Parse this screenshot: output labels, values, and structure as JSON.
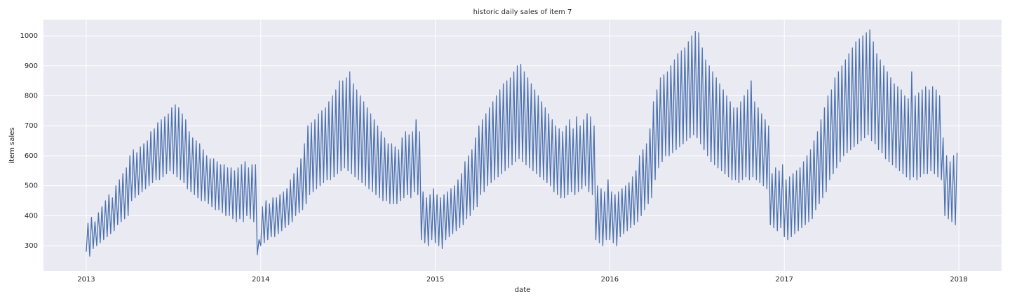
{
  "chart_data": {
    "type": "line",
    "title": "historic daily sales of item 7",
    "xlabel": "date",
    "ylabel": "item sales",
    "color": "#4c72b0",
    "grid": true,
    "xlim": [
      2012.755,
      2018.245
    ],
    "xticks": [
      2013,
      2014,
      2015,
      2016,
      2017,
      2018
    ],
    "ylim": [
      216,
      1054
    ],
    "yticks": [
      300,
      400,
      500,
      600,
      700,
      800,
      900,
      1000
    ],
    "x": [
      2013.0,
      2013.01,
      2013.02,
      2013.03,
      2013.04,
      2013.05,
      2013.06,
      2013.07,
      2013.08,
      2013.09,
      2013.1,
      2013.11,
      2013.12,
      2013.13,
      2013.14,
      2013.15,
      2013.16,
      2013.17,
      2013.18,
      2013.19,
      2013.2,
      2013.21,
      2013.22,
      2013.23,
      2013.24,
      2013.25,
      2013.26,
      2013.27,
      2013.28,
      2013.29,
      2013.3,
      2013.31,
      2013.32,
      2013.33,
      2013.34,
      2013.35,
      2013.36,
      2013.37,
      2013.38,
      2013.39,
      2013.4,
      2013.41,
      2013.42,
      2013.43,
      2013.44,
      2013.45,
      2013.46,
      2013.47,
      2013.48,
      2013.49,
      2013.5,
      2013.51,
      2013.52,
      2013.53,
      2013.54,
      2013.55,
      2013.56,
      2013.57,
      2013.58,
      2013.59,
      2013.6,
      2013.61,
      2013.62,
      2013.63,
      2013.64,
      2013.65,
      2013.66,
      2013.67,
      2013.68,
      2013.69,
      2013.7,
      2013.71,
      2013.72,
      2013.73,
      2013.74,
      2013.75,
      2013.76,
      2013.77,
      2013.78,
      2013.79,
      2013.8,
      2013.81,
      2013.82,
      2013.83,
      2013.84,
      2013.85,
      2013.86,
      2013.87,
      2013.88,
      2013.89,
      2013.9,
      2013.91,
      2013.92,
      2013.93,
      2013.94,
      2013.95,
      2013.96,
      2013.97,
      2013.98,
      2013.99,
      2014.0,
      2014.01,
      2014.02,
      2014.03,
      2014.04,
      2014.05,
      2014.06,
      2014.07,
      2014.08,
      2014.09,
      2014.1,
      2014.11,
      2014.12,
      2014.13,
      2014.14,
      2014.15,
      2014.16,
      2014.17,
      2014.18,
      2014.19,
      2014.2,
      2014.21,
      2014.22,
      2014.23,
      2014.24,
      2014.25,
      2014.26,
      2014.27,
      2014.28,
      2014.29,
      2014.3,
      2014.31,
      2014.32,
      2014.33,
      2014.34,
      2014.35,
      2014.36,
      2014.37,
      2014.38,
      2014.39,
      2014.4,
      2014.41,
      2014.42,
      2014.43,
      2014.44,
      2014.45,
      2014.46,
      2014.47,
      2014.48,
      2014.49,
      2014.5,
      2014.51,
      2014.52,
      2014.53,
      2014.54,
      2014.55,
      2014.56,
      2014.57,
      2014.58,
      2014.59,
      2014.6,
      2014.61,
      2014.62,
      2014.63,
      2014.64,
      2014.65,
      2014.66,
      2014.67,
      2014.68,
      2014.69,
      2014.7,
      2014.71,
      2014.72,
      2014.73,
      2014.74,
      2014.75,
      2014.76,
      2014.77,
      2014.78,
      2014.79,
      2014.8,
      2014.81,
      2014.82,
      2014.83,
      2014.84,
      2014.85,
      2014.86,
      2014.87,
      2014.88,
      2014.89,
      2014.9,
      2014.91,
      2014.92,
      2014.93,
      2014.94,
      2014.95,
      2014.96,
      2014.97,
      2014.98,
      2014.99,
      2015.0,
      2015.01,
      2015.02,
      2015.03,
      2015.04,
      2015.05,
      2015.06,
      2015.07,
      2015.08,
      2015.09,
      2015.1,
      2015.11,
      2015.12,
      2015.13,
      2015.14,
      2015.15,
      2015.16,
      2015.17,
      2015.18,
      2015.19,
      2015.2,
      2015.21,
      2015.22,
      2015.23,
      2015.24,
      2015.25,
      2015.26,
      2015.27,
      2015.28,
      2015.29,
      2015.3,
      2015.31,
      2015.32,
      2015.33,
      2015.34,
      2015.35,
      2015.36,
      2015.37,
      2015.38,
      2015.39,
      2015.4,
      2015.41,
      2015.42,
      2015.43,
      2015.44,
      2015.45,
      2015.46,
      2015.47,
      2015.48,
      2015.49,
      2015.5,
      2015.51,
      2015.52,
      2015.53,
      2015.54,
      2015.55,
      2015.56,
      2015.57,
      2015.58,
      2015.59,
      2015.6,
      2015.61,
      2015.62,
      2015.63,
      2015.64,
      2015.65,
      2015.66,
      2015.67,
      2015.68,
      2015.69,
      2015.7,
      2015.71,
      2015.72,
      2015.73,
      2015.74,
      2015.75,
      2015.76,
      2015.77,
      2015.78,
      2015.79,
      2015.8,
      2015.81,
      2015.82,
      2015.83,
      2015.84,
      2015.85,
      2015.86,
      2015.87,
      2015.88,
      2015.89,
      2015.9,
      2015.91,
      2015.92,
      2015.93,
      2015.94,
      2015.95,
      2015.96,
      2015.97,
      2015.98,
      2015.99,
      2016.0,
      2016.01,
      2016.02,
      2016.03,
      2016.04,
      2016.05,
      2016.06,
      2016.07,
      2016.08,
      2016.09,
      2016.1,
      2016.11,
      2016.12,
      2016.13,
      2016.14,
      2016.15,
      2016.16,
      2016.17,
      2016.18,
      2016.19,
      2016.2,
      2016.21,
      2016.22,
      2016.23,
      2016.24,
      2016.25,
      2016.26,
      2016.27,
      2016.28,
      2016.29,
      2016.3,
      2016.31,
      2016.32,
      2016.33,
      2016.34,
      2016.35,
      2016.36,
      2016.37,
      2016.38,
      2016.39,
      2016.4,
      2016.41,
      2016.42,
      2016.43,
      2016.44,
      2016.45,
      2016.46,
      2016.47,
      2016.48,
      2016.49,
      2016.5,
      2016.51,
      2016.52,
      2016.53,
      2016.54,
      2016.55,
      2016.56,
      2016.57,
      2016.58,
      2016.59,
      2016.6,
      2016.61,
      2016.62,
      2016.63,
      2016.64,
      2016.65,
      2016.66,
      2016.67,
      2016.68,
      2016.69,
      2016.7,
      2016.71,
      2016.72,
      2016.73,
      2016.74,
      2016.75,
      2016.76,
      2016.77,
      2016.78,
      2016.79,
      2016.8,
      2016.81,
      2016.82,
      2016.83,
      2016.84,
      2016.85,
      2016.86,
      2016.87,
      2016.88,
      2016.89,
      2016.9,
      2016.91,
      2016.92,
      2016.93,
      2016.94,
      2016.95,
      2016.96,
      2016.97,
      2016.98,
      2016.99,
      2017.0,
      2017.01,
      2017.02,
      2017.03,
      2017.04,
      2017.05,
      2017.06,
      2017.07,
      2017.08,
      2017.09,
      2017.1,
      2017.11,
      2017.12,
      2017.13,
      2017.14,
      2017.15,
      2017.16,
      2017.17,
      2017.18,
      2017.19,
      2017.2,
      2017.21,
      2017.22,
      2017.23,
      2017.24,
      2017.25,
      2017.26,
      2017.27,
      2017.28,
      2017.29,
      2017.3,
      2017.31,
      2017.32,
      2017.33,
      2017.34,
      2017.35,
      2017.36,
      2017.37,
      2017.38,
      2017.39,
      2017.4,
      2017.41,
      2017.42,
      2017.43,
      2017.44,
      2017.45,
      2017.46,
      2017.47,
      2017.48,
      2017.49,
      2017.5,
      2017.51,
      2017.52,
      2017.53,
      2017.54,
      2017.55,
      2017.56,
      2017.57,
      2017.58,
      2017.59,
      2017.6,
      2017.61,
      2017.62,
      2017.63,
      2017.64,
      2017.65,
      2017.66,
      2017.67,
      2017.68,
      2017.69,
      2017.7,
      2017.71,
      2017.72,
      2017.73,
      2017.74,
      2017.75,
      2017.76,
      2017.77,
      2017.78,
      2017.79,
      2017.8,
      2017.81,
      2017.82,
      2017.83,
      2017.84,
      2017.85,
      2017.86,
      2017.87,
      2017.88,
      2017.89,
      2017.9,
      2017.91,
      2017.92,
      2017.93,
      2017.94,
      2017.95,
      2017.96,
      2017.97,
      2017.98,
      2017.99
    ],
    "values": [
      280,
      375,
      265,
      395,
      290,
      380,
      300,
      410,
      310,
      430,
      320,
      450,
      330,
      470,
      340,
      460,
      350,
      500,
      370,
      520,
      380,
      540,
      390,
      560,
      400,
      600,
      450,
      620,
      460,
      610,
      470,
      630,
      480,
      640,
      490,
      650,
      500,
      680,
      510,
      690,
      520,
      710,
      520,
      720,
      530,
      730,
      540,
      740,
      550,
      760,
      540,
      770,
      530,
      760,
      520,
      740,
      510,
      720,
      490,
      680,
      480,
      660,
      470,
      650,
      460,
      640,
      450,
      620,
      450,
      600,
      440,
      590,
      430,
      590,
      420,
      580,
      420,
      570,
      410,
      570,
      400,
      560,
      400,
      560,
      390,
      550,
      380,
      560,
      390,
      570,
      380,
      580,
      400,
      560,
      390,
      570,
      380,
      570,
      270,
      320,
      300,
      430,
      310,
      450,
      320,
      440,
      330,
      460,
      330,
      460,
      340,
      470,
      350,
      480,
      360,
      490,
      370,
      520,
      380,
      540,
      400,
      560,
      410,
      590,
      420,
      640,
      440,
      700,
      470,
      710,
      480,
      720,
      490,
      740,
      500,
      750,
      510,
      760,
      520,
      780,
      520,
      800,
      530,
      820,
      540,
      850,
      550,
      850,
      560,
      860,
      550,
      880,
      540,
      840,
      530,
      820,
      520,
      800,
      510,
      780,
      500,
      760,
      490,
      740,
      480,
      720,
      470,
      700,
      460,
      680,
      450,
      660,
      450,
      640,
      440,
      640,
      440,
      630,
      440,
      620,
      450,
      660,
      460,
      680,
      470,
      670,
      460,
      680,
      480,
      720,
      470,
      680,
      320,
      480,
      310,
      460,
      300,
      470,
      320,
      490,
      310,
      470,
      300,
      460,
      290,
      470,
      320,
      480,
      330,
      490,
      340,
      500,
      350,
      520,
      360,
      540,
      370,
      580,
      390,
      600,
      400,
      620,
      420,
      660,
      430,
      700,
      470,
      720,
      480,
      740,
      500,
      760,
      510,
      780,
      520,
      800,
      530,
      820,
      540,
      840,
      550,
      850,
      560,
      860,
      570,
      880,
      580,
      900,
      590,
      905,
      580,
      880,
      570,
      860,
      560,
      840,
      550,
      820,
      540,
      800,
      530,
      780,
      520,
      760,
      510,
      740,
      500,
      720,
      480,
      700,
      470,
      690,
      460,
      680,
      460,
      700,
      470,
      720,
      480,
      690,
      470,
      730,
      480,
      700,
      490,
      720,
      500,
      740,
      480,
      730,
      470,
      700,
      320,
      500,
      310,
      490,
      300,
      480,
      320,
      520,
      320,
      480,
      310,
      470,
      300,
      480,
      330,
      490,
      340,
      500,
      350,
      510,
      360,
      530,
      370,
      550,
      380,
      600,
      400,
      620,
      420,
      640,
      440,
      690,
      460,
      780,
      520,
      820,
      560,
      860,
      580,
      870,
      600,
      880,
      600,
      900,
      610,
      920,
      620,
      940,
      630,
      950,
      640,
      960,
      650,
      980,
      660,
      1000,
      670,
      1015,
      660,
      1010,
      640,
      960,
      620,
      920,
      600,
      900,
      580,
      880,
      570,
      860,
      560,
      840,
      550,
      820,
      540,
      800,
      530,
      780,
      520,
      760,
      520,
      760,
      510,
      780,
      520,
      800,
      530,
      820,
      520,
      850,
      530,
      780,
      520,
      760,
      510,
      740,
      500,
      720,
      490,
      700,
      370,
      540,
      360,
      560,
      350,
      550,
      360,
      570,
      330,
      520,
      320,
      530,
      330,
      540,
      340,
      550,
      350,
      560,
      360,
      580,
      370,
      600,
      380,
      620,
      390,
      650,
      420,
      680,
      440,
      720,
      460,
      760,
      480,
      800,
      520,
      820,
      540,
      860,
      560,
      880,
      580,
      900,
      600,
      920,
      610,
      940,
      620,
      960,
      630,
      980,
      640,
      990,
      650,
      1000,
      660,
      1010,
      670,
      1020,
      650,
      980,
      640,
      940,
      620,
      920,
      610,
      900,
      590,
      880,
      580,
      860,
      570,
      840,
      560,
      830,
      550,
      820,
      540,
      800,
      530,
      790,
      520,
      880,
      530,
      800,
      520,
      810,
      530,
      820,
      540,
      830,
      540,
      820,
      550,
      830,
      540,
      820,
      530,
      800,
      520,
      660,
      400,
      600,
      390,
      580,
      380,
      600,
      370,
      610
    ]
  }
}
